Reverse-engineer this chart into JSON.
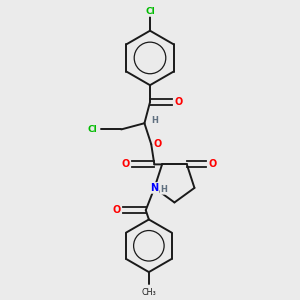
{
  "background_color": "#ebebeb",
  "bond_color": "#1a1a1a",
  "atom_colors": {
    "O": "#ff0000",
    "N": "#0000ff",
    "Cl": "#00bb00",
    "H": "#607080",
    "C": "#1a1a1a"
  },
  "figsize": [
    3.0,
    3.0
  ],
  "dpi": 100
}
